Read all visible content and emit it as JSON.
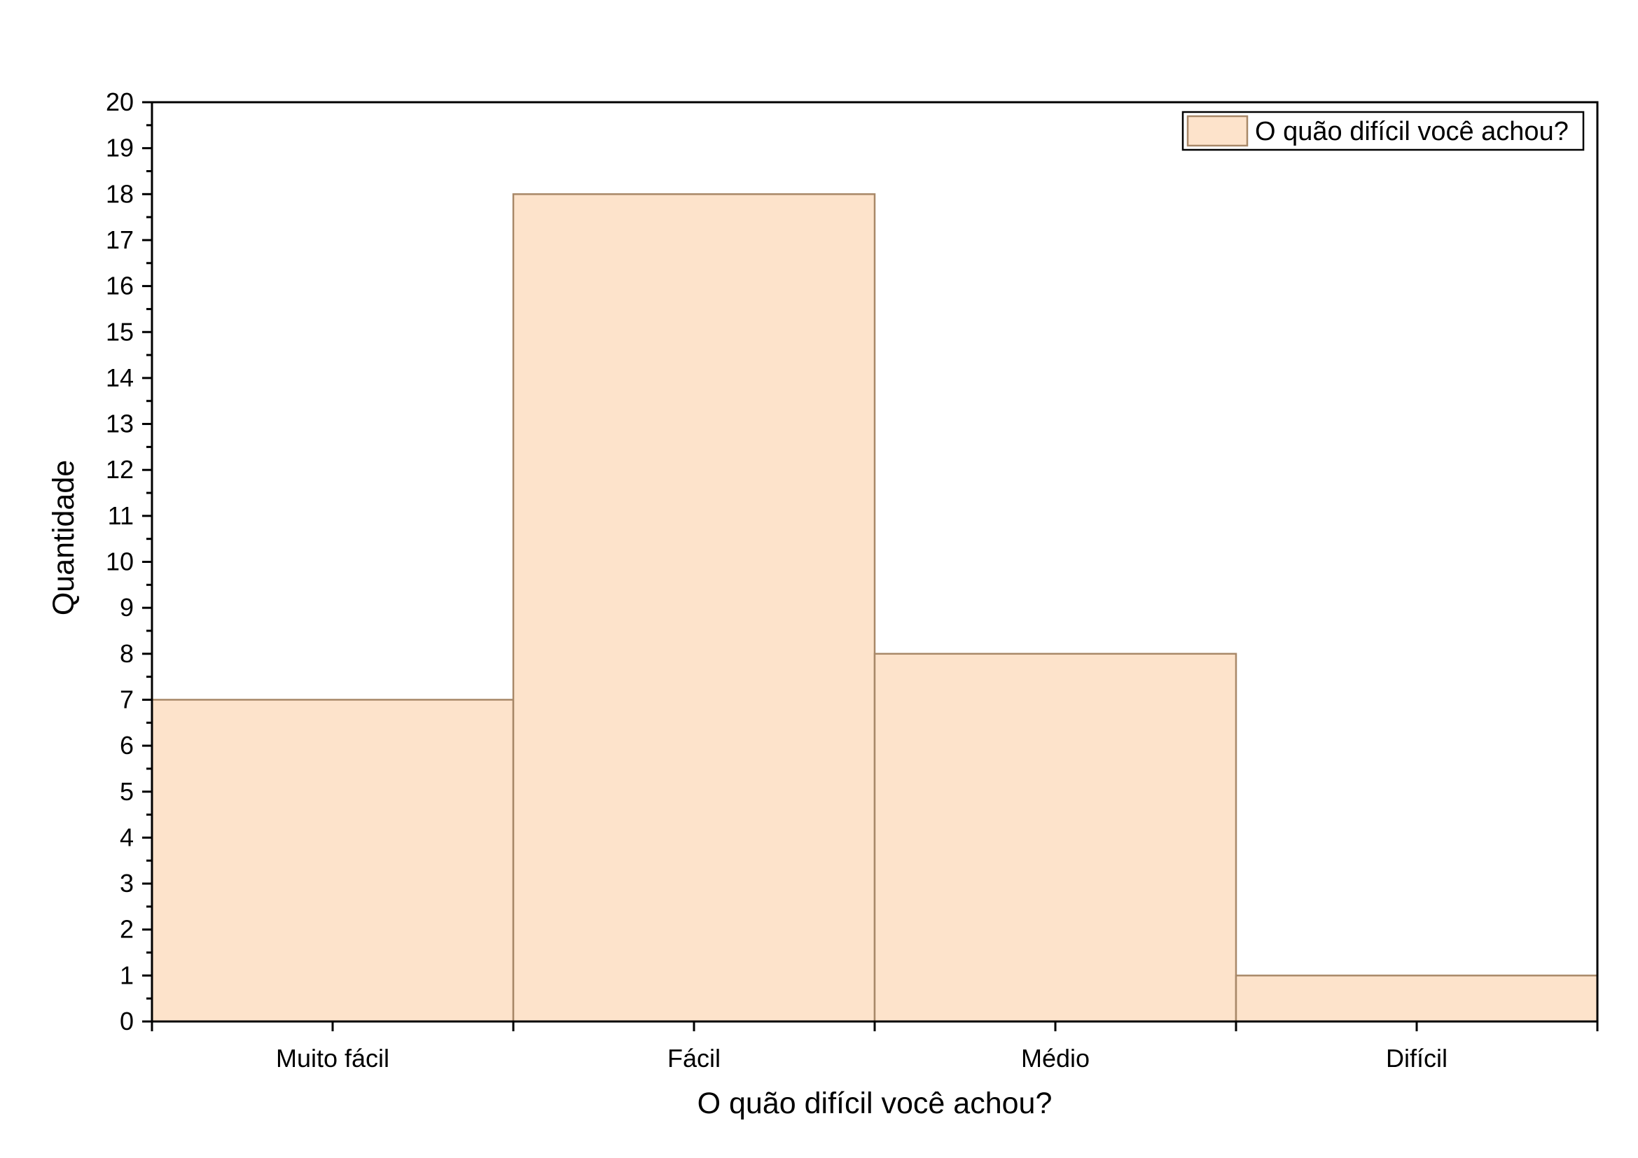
{
  "chart_data": {
    "type": "bar",
    "categories": [
      "Muito fácil",
      "Fácil",
      "Médio",
      "Difícil"
    ],
    "series": [
      {
        "name": "O quão difícil você achou?",
        "values": [
          7,
          18,
          8,
          1
        ]
      }
    ],
    "xlabel": "O quão difícil você achou?",
    "ylabel": "Quantidade",
    "ylim": [
      0,
      20
    ],
    "yticks": [
      "0",
      "1",
      "2",
      "3",
      "4",
      "5",
      "6",
      "7",
      "8",
      "9",
      "10",
      "11",
      "12",
      "13",
      "14",
      "15",
      "16",
      "17",
      "18",
      "19",
      "20"
    ],
    "grid": false,
    "legend_position": "top-right",
    "colors": {
      "bar_fill": "#fde3cb",
      "bar_edge": "#a88868",
      "axis": "#000000"
    }
  }
}
